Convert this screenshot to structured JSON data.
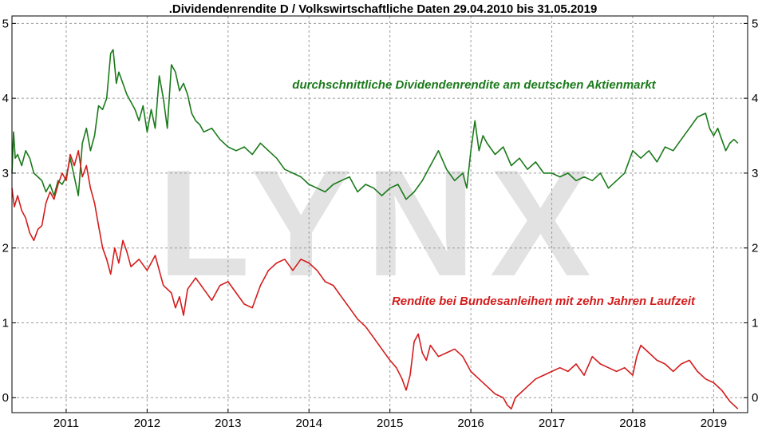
{
  "chart_data": {
    "type": "line",
    "title": ".Dividendenrendite D / Volkswirtschaftliche Daten 29.04.2010 bis 31.05.2019",
    "watermark": "LYNX",
    "xlim": [
      2010.33,
      2019.42
    ],
    "ylim": [
      -0.2,
      5.1
    ],
    "x_ticks": [
      {
        "label": "2011",
        "value": 2011
      },
      {
        "label": "2012",
        "value": 2012
      },
      {
        "label": "2013",
        "value": 2013
      },
      {
        "label": "2014",
        "value": 2014
      },
      {
        "label": "2015",
        "value": 2015
      },
      {
        "label": "2016",
        "value": 2016
      },
      {
        "label": "2017",
        "value": 2017
      },
      {
        "label": "2018",
        "value": 2018
      },
      {
        "label": "2019",
        "value": 2019
      }
    ],
    "y_ticks": [
      {
        "label": "0",
        "value": 0
      },
      {
        "label": "1",
        "value": 1
      },
      {
        "label": "2",
        "value": 2
      },
      {
        "label": "3",
        "value": 3
      },
      {
        "label": "4",
        "value": 4
      },
      {
        "label": "5",
        "value": 5
      }
    ],
    "grid": true,
    "series": [
      {
        "name": "durchschnittliche Dividendenrendite am deutschen Aktienmarkt",
        "color": "#1a7a1a",
        "x": [
          2010.33,
          2010.35,
          2010.37,
          2010.4,
          2010.45,
          2010.5,
          2010.55,
          2010.6,
          2010.65,
          2010.7,
          2010.75,
          2010.8,
          2010.85,
          2010.9,
          2010.95,
          2011.0,
          2011.05,
          2011.1,
          2011.15,
          2011.2,
          2011.25,
          2011.3,
          2011.35,
          2011.4,
          2011.45,
          2011.5,
          2011.55,
          2011.58,
          2011.62,
          2011.65,
          2011.7,
          2011.75,
          2011.8,
          2011.85,
          2011.9,
          2011.95,
          2012.0,
          2012.05,
          2012.1,
          2012.15,
          2012.2,
          2012.25,
          2012.3,
          2012.35,
          2012.4,
          2012.45,
          2012.5,
          2012.55,
          2012.6,
          2012.65,
          2012.7,
          2012.8,
          2012.9,
          2013.0,
          2013.1,
          2013.2,
          2013.3,
          2013.4,
          2013.5,
          2013.6,
          2013.7,
          2013.8,
          2013.9,
          2014.0,
          2014.1,
          2014.2,
          2014.3,
          2014.4,
          2014.5,
          2014.6,
          2014.7,
          2014.8,
          2014.9,
          2015.0,
          2015.1,
          2015.2,
          2015.3,
          2015.4,
          2015.5,
          2015.6,
          2015.7,
          2015.8,
          2015.9,
          2015.95,
          2016.0,
          2016.05,
          2016.1,
          2016.15,
          2016.2,
          2016.3,
          2016.4,
          2016.5,
          2016.6,
          2016.7,
          2016.8,
          2016.9,
          2017.0,
          2017.1,
          2017.2,
          2017.3,
          2017.4,
          2017.5,
          2017.6,
          2017.7,
          2017.8,
          2017.9,
          2018.0,
          2018.1,
          2018.2,
          2018.3,
          2018.4,
          2018.5,
          2018.6,
          2018.7,
          2018.8,
          2018.9,
          2018.95,
          2019.0,
          2019.05,
          2019.1,
          2019.15,
          2019.2,
          2019.25,
          2019.3
        ],
        "values": [
          3.0,
          3.55,
          3.2,
          3.25,
          3.1,
          3.3,
          3.2,
          3.0,
          2.95,
          2.9,
          2.75,
          2.85,
          2.7,
          2.9,
          2.85,
          2.95,
          3.2,
          2.95,
          2.7,
          3.4,
          3.6,
          3.3,
          3.5,
          3.9,
          3.85,
          4.0,
          4.6,
          4.65,
          4.2,
          4.35,
          4.2,
          4.05,
          3.95,
          3.85,
          3.7,
          3.9,
          3.55,
          3.85,
          3.6,
          4.3,
          4.0,
          3.6,
          4.45,
          4.35,
          4.1,
          4.2,
          4.05,
          3.8,
          3.7,
          3.65,
          3.55,
          3.6,
          3.45,
          3.35,
          3.3,
          3.35,
          3.25,
          3.4,
          3.3,
          3.2,
          3.05,
          3.0,
          2.95,
          2.85,
          2.8,
          2.75,
          2.85,
          2.9,
          2.95,
          2.75,
          2.85,
          2.8,
          2.7,
          2.8,
          2.85,
          2.65,
          2.75,
          2.9,
          3.1,
          3.3,
          3.05,
          2.9,
          3.0,
          2.8,
          3.3,
          3.7,
          3.3,
          3.5,
          3.4,
          3.25,
          3.35,
          3.1,
          3.2,
          3.05,
          3.15,
          3.0,
          3.0,
          2.95,
          3.0,
          2.9,
          2.95,
          2.9,
          3.0,
          2.8,
          2.9,
          3.0,
          3.3,
          3.2,
          3.3,
          3.15,
          3.35,
          3.3,
          3.45,
          3.6,
          3.75,
          3.8,
          3.6,
          3.5,
          3.6,
          3.45,
          3.3,
          3.4,
          3.45,
          3.4
        ]
      },
      {
        "name": "Rendite bei Bundesanleihen mit zehn Jahren Laufzeit",
        "color": "#d41c1c",
        "x": [
          2010.33,
          2010.36,
          2010.4,
          2010.45,
          2010.5,
          2010.55,
          2010.6,
          2010.65,
          2010.7,
          2010.75,
          2010.8,
          2010.85,
          2010.9,
          2010.95,
          2011.0,
          2011.05,
          2011.1,
          2011.15,
          2011.2,
          2011.25,
          2011.3,
          2011.35,
          2011.4,
          2011.45,
          2011.5,
          2011.55,
          2011.6,
          2011.65,
          2011.7,
          2011.75,
          2011.8,
          2011.85,
          2011.9,
          2012.0,
          2012.1,
          2012.2,
          2012.3,
          2012.35,
          2012.4,
          2012.45,
          2012.5,
          2012.6,
          2012.7,
          2012.8,
          2012.9,
          2013.0,
          2013.1,
          2013.2,
          2013.3,
          2013.4,
          2013.5,
          2013.6,
          2013.7,
          2013.8,
          2013.9,
          2014.0,
          2014.1,
          2014.2,
          2014.3,
          2014.4,
          2014.5,
          2014.6,
          2014.7,
          2014.8,
          2014.9,
          2015.0,
          2015.08,
          2015.15,
          2015.2,
          2015.25,
          2015.3,
          2015.35,
          2015.4,
          2015.45,
          2015.5,
          2015.6,
          2015.7,
          2015.8,
          2015.9,
          2016.0,
          2016.1,
          2016.2,
          2016.3,
          2016.4,
          2016.45,
          2016.5,
          2016.55,
          2016.6,
          2016.7,
          2016.8,
          2016.9,
          2017.0,
          2017.1,
          2017.2,
          2017.3,
          2017.4,
          2017.5,
          2017.6,
          2017.7,
          2017.8,
          2017.9,
          2018.0,
          2018.05,
          2018.1,
          2018.2,
          2018.3,
          2018.4,
          2018.5,
          2018.6,
          2018.7,
          2018.8,
          2018.9,
          2019.0,
          2019.1,
          2019.2,
          2019.3
        ],
        "values": [
          2.8,
          2.55,
          2.7,
          2.5,
          2.4,
          2.2,
          2.1,
          2.25,
          2.3,
          2.6,
          2.75,
          2.65,
          2.85,
          3.0,
          2.9,
          3.25,
          3.1,
          3.3,
          2.95,
          3.1,
          2.8,
          2.6,
          2.3,
          2.0,
          1.85,
          1.65,
          2.0,
          1.8,
          2.1,
          1.95,
          1.75,
          1.8,
          1.85,
          1.7,
          1.9,
          1.5,
          1.4,
          1.2,
          1.35,
          1.1,
          1.45,
          1.6,
          1.45,
          1.3,
          1.5,
          1.55,
          1.4,
          1.25,
          1.2,
          1.5,
          1.7,
          1.8,
          1.85,
          1.7,
          1.85,
          1.8,
          1.7,
          1.55,
          1.5,
          1.35,
          1.2,
          1.05,
          0.95,
          0.8,
          0.65,
          0.5,
          0.4,
          0.25,
          0.1,
          0.3,
          0.75,
          0.85,
          0.6,
          0.5,
          0.7,
          0.55,
          0.6,
          0.65,
          0.55,
          0.35,
          0.25,
          0.15,
          0.05,
          0.0,
          -0.1,
          -0.15,
          0.0,
          0.05,
          0.15,
          0.25,
          0.3,
          0.35,
          0.4,
          0.35,
          0.45,
          0.3,
          0.55,
          0.45,
          0.4,
          0.35,
          0.4,
          0.3,
          0.55,
          0.7,
          0.6,
          0.5,
          0.45,
          0.35,
          0.45,
          0.5,
          0.35,
          0.25,
          0.2,
          0.1,
          -0.05,
          -0.15
        ]
      }
    ]
  }
}
